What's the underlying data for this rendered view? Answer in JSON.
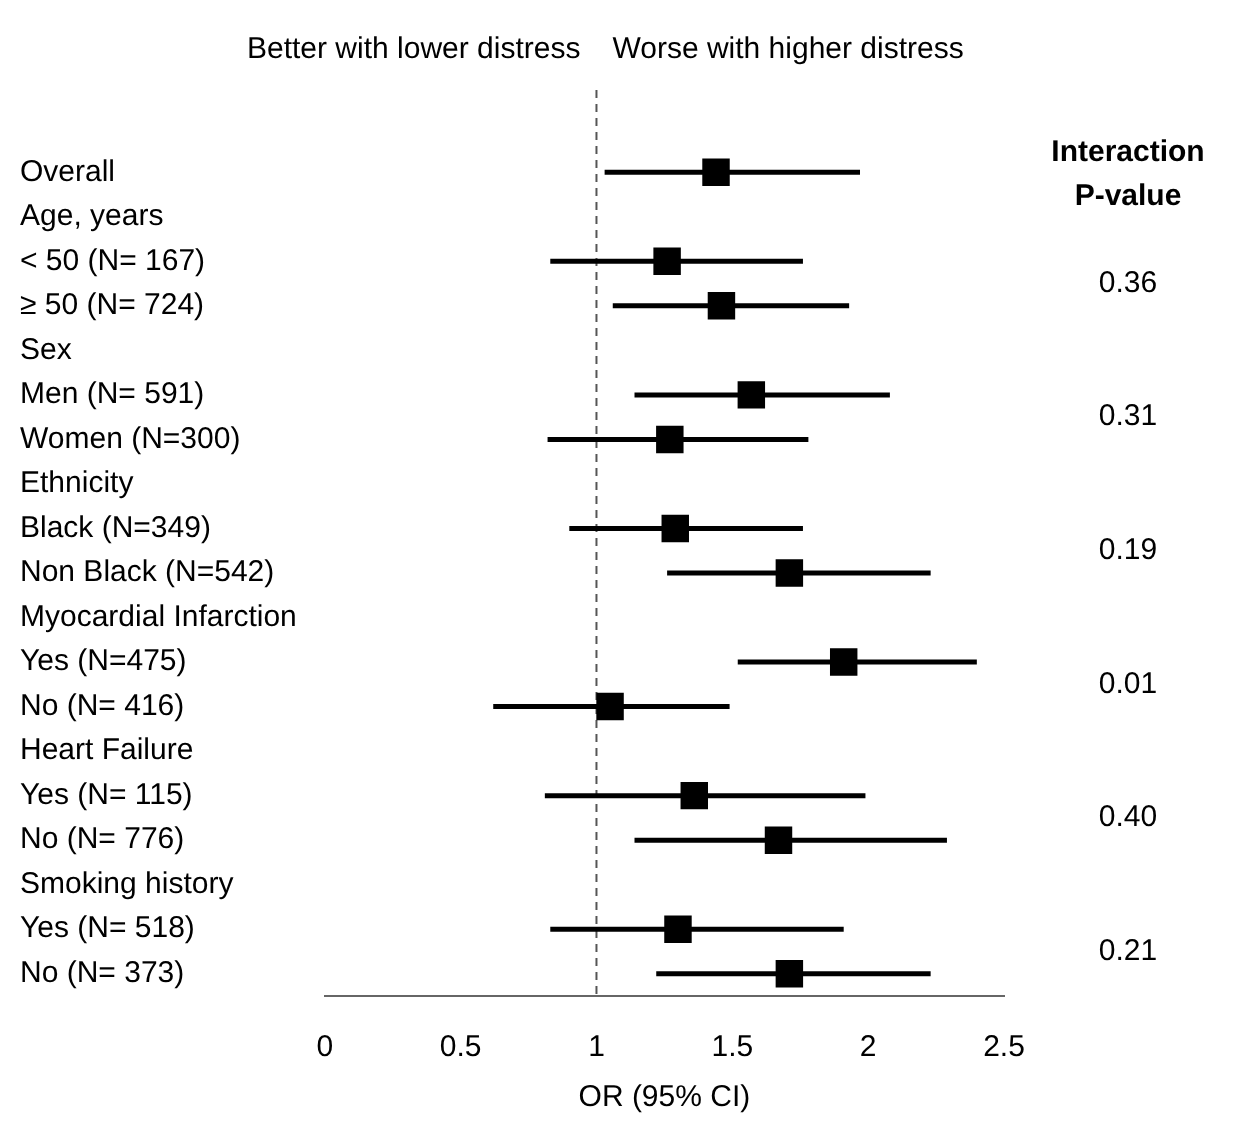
{
  "chart_data": {
    "type": "scatter",
    "orientation": "horizontal",
    "xlabel": "OR (95% CI)",
    "categories": [
      "Overall",
      "Age, years",
      "< 50 (N= 167)",
      "≥ 50 (N= 724)",
      "Sex",
      "Men (N= 591)",
      "Women (N=300)",
      "Ethnicity",
      "Black (N=349)",
      "Non Black (N=542)",
      "Myocardial Infarction",
      "Yes (N=475)",
      "No (N= 416)",
      "Heart Failure",
      "Yes (N= 115)",
      "No (N= 776)",
      "Smoking history",
      "Yes (N= 518)",
      "No (N= 373)"
    ],
    "values": [
      1.44,
      null,
      1.26,
      1.46,
      null,
      1.57,
      1.27,
      null,
      1.29,
      1.71,
      null,
      1.91,
      1.05,
      null,
      1.36,
      1.67,
      null,
      1.3,
      1.71
    ],
    "errors": [
      [
        1.03,
        1.97
      ],
      null,
      [
        0.83,
        1.76
      ],
      [
        1.06,
        1.93
      ],
      null,
      [
        1.14,
        2.08
      ],
      [
        0.82,
        1.78
      ],
      null,
      [
        0.9,
        1.76
      ],
      [
        1.26,
        2.23
      ],
      null,
      [
        1.52,
        2.4
      ],
      [
        0.62,
        1.49
      ],
      null,
      [
        0.81,
        1.99
      ],
      [
        1.14,
        2.29
      ],
      null,
      [
        0.83,
        1.91
      ],
      [
        1.22,
        2.23
      ]
    ],
    "color": "#000000",
    "marker": "square",
    "grid": false,
    "legend": false,
    "xlim": [
      0,
      2.5
    ],
    "xticks": [
      0,
      0.5,
      1,
      1.5,
      2,
      2.5
    ],
    "ref_lines": [
      {
        "axis": "x",
        "value": 1,
        "line_style": "dashed",
        "color": "#555555"
      }
    ],
    "annotations": [
      "Better with lower distress",
      "Worse with higher distress",
      "Interaction P-value",
      "0.36",
      "0.31",
      "0.19",
      "0.01",
      "0.40",
      "0.21"
    ]
  }
}
